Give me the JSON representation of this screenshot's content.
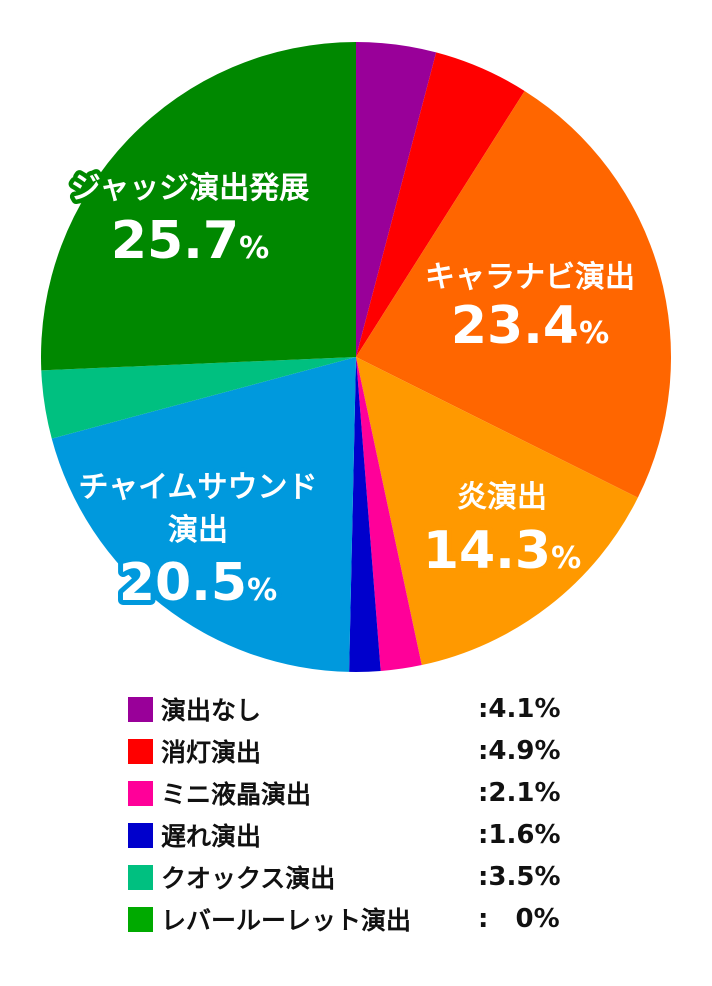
{
  "chart_data": {
    "type": "pie",
    "start_angle_deg": 0,
    "direction": "clockwise",
    "slices": [
      {
        "label": "演出なし",
        "value": 4.1,
        "color": "#990099"
      },
      {
        "label": "消灯演出",
        "value": 4.9,
        "color": "#ff0000"
      },
      {
        "label": "キャラナビ演出",
        "value": 23.4,
        "color": "#ff6600"
      },
      {
        "label": "炎演出",
        "value": 14.3,
        "color": "#ff9900"
      },
      {
        "label": "ミニ液晶演出",
        "value": 2.1,
        "color": "#ff0099"
      },
      {
        "label": "遅れ演出",
        "value": 1.6,
        "color": "#0000cc"
      },
      {
        "label": "チャイムサウンド演出",
        "value": 20.5,
        "color": "#0099dd"
      },
      {
        "label": "クオックス演出",
        "value": 3.5,
        "color": "#00c080"
      },
      {
        "label": "ジャッジ演出発展",
        "value": 25.7,
        "color": "#008800"
      }
    ],
    "in_chart_labels": [
      {
        "lines": [
          "キャラナビ演出"
        ],
        "value": "23.4",
        "unit": "%",
        "color": "#ff6600"
      },
      {
        "lines": [
          "炎演出"
        ],
        "value": "14.3",
        "unit": "%",
        "color": "#ff9900"
      },
      {
        "lines": [
          "チャイムサウンド",
          "演出"
        ],
        "value": "20.5",
        "unit": "%",
        "color": "#0099dd"
      },
      {
        "lines": [
          "ジャッジ演出発展"
        ],
        "value": "25.7",
        "unit": "%",
        "color": "#008800"
      }
    ]
  },
  "legend": [
    {
      "label": "演出なし",
      "value": ":4.1%",
      "color": "#990099"
    },
    {
      "label": "消灯演出",
      "value": ":4.9%",
      "color": "#ff0000"
    },
    {
      "label": "ミニ液晶演出",
      "value": ":2.1%",
      "color": "#ff0099"
    },
    {
      "label": "遅れ演出",
      "value": ":1.6%",
      "color": "#0000cc"
    },
    {
      "label": "クオックス演出",
      "value": ":3.5%",
      "color": "#00c080"
    },
    {
      "label": "レバールーレット演出",
      "value": ":   0%",
      "color": "#00aa00"
    }
  ]
}
